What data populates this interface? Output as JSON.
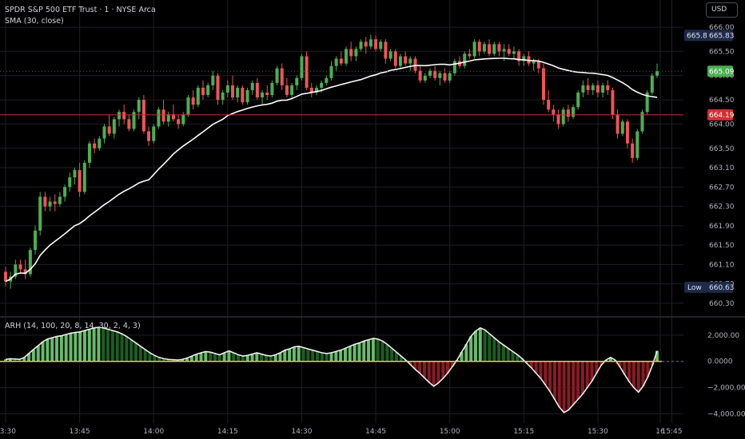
{
  "header": {
    "symbol_line": "SPDR S&P 500 ETF Trust · 1 · NYSE Arca",
    "indicator_line": "SMA (30, close)",
    "lower_indicator": "ARH (14, 100, 20, 8, 14, 30, 2, 4, 3)"
  },
  "currency_button": "USD",
  "price_axis": {
    "ticks": [
      "666.00",
      "665.50",
      "665.00",
      "664.50",
      "664.00",
      "663.50",
      "663.10",
      "662.70",
      "662.30",
      "661.90",
      "661.50",
      "661.10",
      "660.70",
      "660.30"
    ],
    "high_label": "High",
    "high_value": "665.83",
    "low_label": "Low",
    "low_value": "660.63",
    "last_value": "665.09",
    "line_value": "664.19"
  },
  "osc_axis": {
    "ticks": [
      "2,000.00",
      "0.0000",
      "−2,000.00",
      "−4,000.00"
    ]
  },
  "time_axis": {
    "labels": [
      "13:30",
      "13:45",
      "14:00",
      "14:15",
      "14:30",
      "14:45",
      "15:00",
      "15:15",
      "15:30",
      "15:45",
      "16"
    ]
  },
  "colors": {
    "up": "#4caf50",
    "down": "#f05358",
    "sma": "#ffffff",
    "hline": "#d32f2f",
    "osc_pos": "#66bb6a",
    "osc_pos_dark": "#1b5e20",
    "osc_neg": "#8b1a24",
    "osc_zero": "#e8d43a"
  },
  "chart_data": {
    "type": "candlestick",
    "price_range": [
      660.2,
      666.1
    ],
    "sma_period": 30,
    "horizontal_line": 664.19,
    "candles": [
      [
        660.95,
        661.05,
        660.65,
        660.75
      ],
      [
        660.75,
        660.95,
        660.6,
        660.85
      ],
      [
        660.85,
        661.2,
        660.8,
        661.1
      ],
      [
        661.1,
        661.2,
        660.9,
        661.0
      ],
      [
        661.0,
        661.2,
        660.8,
        660.9
      ],
      [
        660.9,
        661.45,
        660.85,
        661.4
      ],
      [
        661.4,
        661.9,
        661.3,
        661.8
      ],
      [
        661.8,
        662.6,
        661.7,
        662.5
      ],
      [
        662.5,
        662.6,
        662.2,
        662.3
      ],
      [
        662.3,
        662.5,
        662.2,
        662.4
      ],
      [
        662.4,
        662.55,
        662.2,
        662.35
      ],
      [
        662.35,
        662.6,
        662.3,
        662.5
      ],
      [
        662.5,
        662.75,
        662.4,
        662.7
      ],
      [
        662.7,
        663.0,
        662.6,
        662.9
      ],
      [
        662.9,
        663.1,
        662.75,
        663.05
      ],
      [
        663.05,
        663.2,
        662.5,
        662.6
      ],
      [
        662.6,
        663.25,
        662.55,
        663.2
      ],
      [
        663.2,
        663.65,
        663.1,
        663.6
      ],
      [
        663.6,
        663.7,
        663.4,
        663.5
      ],
      [
        663.5,
        663.75,
        663.45,
        663.7
      ],
      [
        663.7,
        664.0,
        663.6,
        663.95
      ],
      [
        663.95,
        664.2,
        663.75,
        663.8
      ],
      [
        663.8,
        664.15,
        663.7,
        664.1
      ],
      [
        664.1,
        664.3,
        663.95,
        664.25
      ],
      [
        664.25,
        664.4,
        664.0,
        664.1
      ],
      [
        664.1,
        664.2,
        663.85,
        663.9
      ],
      [
        663.9,
        664.3,
        663.85,
        664.25
      ],
      [
        664.25,
        664.55,
        664.1,
        664.5
      ],
      [
        664.5,
        664.6,
        663.8,
        663.85
      ],
      [
        663.85,
        663.95,
        663.55,
        663.65
      ],
      [
        663.65,
        664.0,
        663.6,
        663.95
      ],
      [
        663.95,
        664.35,
        663.9,
        664.3
      ],
      [
        664.3,
        664.5,
        664.0,
        664.05
      ],
      [
        664.05,
        664.25,
        663.95,
        664.2
      ],
      [
        664.2,
        664.4,
        664.05,
        664.1
      ],
      [
        664.1,
        664.2,
        663.9,
        664.0
      ],
      [
        664.0,
        664.25,
        663.95,
        664.2
      ],
      [
        664.2,
        664.6,
        664.15,
        664.55
      ],
      [
        664.55,
        664.7,
        664.3,
        664.4
      ],
      [
        664.4,
        664.8,
        664.35,
        664.75
      ],
      [
        664.75,
        664.9,
        664.5,
        664.6
      ],
      [
        664.6,
        664.85,
        664.55,
        664.8
      ],
      [
        664.8,
        665.1,
        664.7,
        665.0
      ],
      [
        665.0,
        665.05,
        664.4,
        664.5
      ],
      [
        664.5,
        664.7,
        664.4,
        664.65
      ],
      [
        664.65,
        664.9,
        664.55,
        664.8
      ],
      [
        664.8,
        665.0,
        664.5,
        664.55
      ],
      [
        664.55,
        664.8,
        664.45,
        664.75
      ],
      [
        664.75,
        664.8,
        664.4,
        664.45
      ],
      [
        664.45,
        664.75,
        664.4,
        664.7
      ],
      [
        664.7,
        664.9,
        664.6,
        664.85
      ],
      [
        664.85,
        664.95,
        664.5,
        664.55
      ],
      [
        664.55,
        664.7,
        664.4,
        664.65
      ],
      [
        664.65,
        664.8,
        664.5,
        664.6
      ],
      [
        664.6,
        664.9,
        664.55,
        664.85
      ],
      [
        664.85,
        665.2,
        664.8,
        665.15
      ],
      [
        665.15,
        665.25,
        664.7,
        664.8
      ],
      [
        664.8,
        664.95,
        664.55,
        664.6
      ],
      [
        664.6,
        664.85,
        664.55,
        664.8
      ],
      [
        664.8,
        665.0,
        664.7,
        664.95
      ],
      [
        664.95,
        665.45,
        664.9,
        665.4
      ],
      [
        665.4,
        665.5,
        664.7,
        664.75
      ],
      [
        664.75,
        664.85,
        664.55,
        664.65
      ],
      [
        664.65,
        664.8,
        664.6,
        664.75
      ],
      [
        664.75,
        664.9,
        664.65,
        664.85
      ],
      [
        664.85,
        665.0,
        664.8,
        664.95
      ],
      [
        664.95,
        665.3,
        664.9,
        665.2
      ],
      [
        665.2,
        665.4,
        665.1,
        665.35
      ],
      [
        665.35,
        665.5,
        665.2,
        665.25
      ],
      [
        665.25,
        665.6,
        665.2,
        665.55
      ],
      [
        665.55,
        665.7,
        665.3,
        665.4
      ],
      [
        665.4,
        665.6,
        665.3,
        665.55
      ],
      [
        665.55,
        665.75,
        665.5,
        665.7
      ],
      [
        665.7,
        665.8,
        665.45,
        665.6
      ],
      [
        665.6,
        665.85,
        665.55,
        665.75
      ],
      [
        665.75,
        665.83,
        665.5,
        665.55
      ],
      [
        665.55,
        665.75,
        665.5,
        665.7
      ],
      [
        665.7,
        665.75,
        665.25,
        665.35
      ],
      [
        665.35,
        665.55,
        665.3,
        665.5
      ],
      [
        665.5,
        665.55,
        665.15,
        665.2
      ],
      [
        665.2,
        665.45,
        665.15,
        665.4
      ],
      [
        665.4,
        665.5,
        665.2,
        665.25
      ],
      [
        665.25,
        665.4,
        665.1,
        665.35
      ],
      [
        665.35,
        665.4,
        665.05,
        665.1
      ],
      [
        665.1,
        665.2,
        664.85,
        664.9
      ],
      [
        664.9,
        665.05,
        664.85,
        665.0
      ],
      [
        665.0,
        665.15,
        664.95,
        665.1
      ],
      [
        665.1,
        665.2,
        664.9,
        664.95
      ],
      [
        664.95,
        665.1,
        664.8,
        665.05
      ],
      [
        665.05,
        665.15,
        664.85,
        664.9
      ],
      [
        664.9,
        665.1,
        664.85,
        665.05
      ],
      [
        665.05,
        665.35,
        665.0,
        665.3
      ],
      [
        665.3,
        665.4,
        665.15,
        665.2
      ],
      [
        665.2,
        665.5,
        665.15,
        665.45
      ],
      [
        665.45,
        665.55,
        665.35,
        665.4
      ],
      [
        665.4,
        665.75,
        665.35,
        665.7
      ],
      [
        665.7,
        665.75,
        665.4,
        665.5
      ],
      [
        665.5,
        665.7,
        665.45,
        665.65
      ],
      [
        665.65,
        665.75,
        665.4,
        665.45
      ],
      [
        665.45,
        665.7,
        665.4,
        665.65
      ],
      [
        665.65,
        665.7,
        665.4,
        665.5
      ],
      [
        665.5,
        665.65,
        665.3,
        665.55
      ],
      [
        665.55,
        665.65,
        665.4,
        665.45
      ],
      [
        665.45,
        665.6,
        665.35,
        665.5
      ],
      [
        665.5,
        665.55,
        665.2,
        665.3
      ],
      [
        665.3,
        665.45,
        665.2,
        665.4
      ],
      [
        665.4,
        665.5,
        665.2,
        665.25
      ],
      [
        665.25,
        665.35,
        665.1,
        665.3
      ],
      [
        665.3,
        665.35,
        665.05,
        665.15
      ],
      [
        665.15,
        665.25,
        664.4,
        664.5
      ],
      [
        664.5,
        664.7,
        664.25,
        664.3
      ],
      [
        664.3,
        664.4,
        664.05,
        664.2
      ],
      [
        664.2,
        664.3,
        663.9,
        664.0
      ],
      [
        664.0,
        664.35,
        663.95,
        664.3
      ],
      [
        664.3,
        664.4,
        664.05,
        664.15
      ],
      [
        664.15,
        664.4,
        664.1,
        664.35
      ],
      [
        664.35,
        664.7,
        664.3,
        664.65
      ],
      [
        664.65,
        664.9,
        664.55,
        664.8
      ],
      [
        664.8,
        664.95,
        664.6,
        664.7
      ],
      [
        664.7,
        664.85,
        664.6,
        664.8
      ],
      [
        664.8,
        664.9,
        664.55,
        664.65
      ],
      [
        664.65,
        664.85,
        664.55,
        664.8
      ],
      [
        664.8,
        664.9,
        664.6,
        664.7
      ],
      [
        664.7,
        664.75,
        664.1,
        664.2
      ],
      [
        664.2,
        664.3,
        663.7,
        663.8
      ],
      [
        663.8,
        664.1,
        663.75,
        664.05
      ],
      [
        664.05,
        664.1,
        663.5,
        663.6
      ],
      [
        663.6,
        663.7,
        663.2,
        663.3
      ],
      [
        663.3,
        663.9,
        663.25,
        663.85
      ],
      [
        663.85,
        664.3,
        663.8,
        664.25
      ],
      [
        664.25,
        664.7,
        664.2,
        664.65
      ],
      [
        664.65,
        665.05,
        664.6,
        665.0
      ],
      [
        665.0,
        665.25,
        664.95,
        665.09
      ]
    ],
    "oscillator": {
      "name": "ARH (14, 100, 20, 8, 14, 30, 2, 4, 3)",
      "range": [
        -4400,
        2600
      ],
      "values": [
        150,
        200,
        180,
        150,
        300,
        600,
        900,
        1200,
        1500,
        1700,
        1800,
        1900,
        1950,
        2050,
        2150,
        2200,
        2250,
        2350,
        2450,
        2550,
        2600,
        2550,
        2450,
        2350,
        2250,
        2100,
        1900,
        1650,
        1400,
        1150,
        900,
        650,
        450,
        300,
        200,
        150,
        120,
        100,
        150,
        250,
        400,
        550,
        650,
        750,
        700,
        600,
        500,
        650,
        800,
        650,
        500,
        400,
        450,
        550,
        650,
        550,
        450,
        400,
        500,
        650,
        850,
        950,
        1100,
        1150,
        1050,
        950,
        850,
        750,
        650,
        600,
        650,
        750,
        850,
        1000,
        1150,
        1300,
        1400,
        1550,
        1650,
        1750,
        1700,
        1550,
        1300,
        1000,
        700,
        400,
        100,
        -250,
        -600,
        -900,
        -1250,
        -1600,
        -1900,
        -1650,
        -1300,
        -900,
        -400,
        100,
        700,
        1300,
        1900,
        2300,
        2550,
        2400,
        2100,
        1800,
        1500,
        1250,
        1000,
        750,
        500,
        200,
        -150,
        -500,
        -900,
        -1300,
        -1800,
        -2300,
        -2900,
        -3500,
        -3900,
        -3700,
        -3300,
        -2900,
        -2500,
        -2000,
        -1500,
        -900,
        -300,
        100,
        300,
        100,
        -400,
        -1000,
        -1550,
        -2000,
        -2350,
        -1900,
        -1200,
        -300,
        800
      ]
    }
  }
}
